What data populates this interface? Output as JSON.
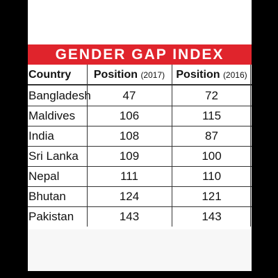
{
  "header": {
    "title": "GENDER GAP INDEX"
  },
  "table": {
    "columns": [
      {
        "main": "Country"
      },
      {
        "main": "Position",
        "note": "(2017)"
      },
      {
        "main": "Position",
        "note": "(2016)"
      }
    ],
    "rows": [
      [
        "Bangladesh",
        "47",
        "72"
      ],
      [
        "Maldives",
        "106",
        "115"
      ],
      [
        "India",
        "108",
        "87"
      ],
      [
        "Sri Lanka",
        "109",
        "100"
      ],
      [
        "Nepal",
        "111",
        "110"
      ],
      [
        "Bhutan",
        "124",
        "121"
      ],
      [
        "Pakistan",
        "143",
        "143"
      ]
    ]
  }
}
